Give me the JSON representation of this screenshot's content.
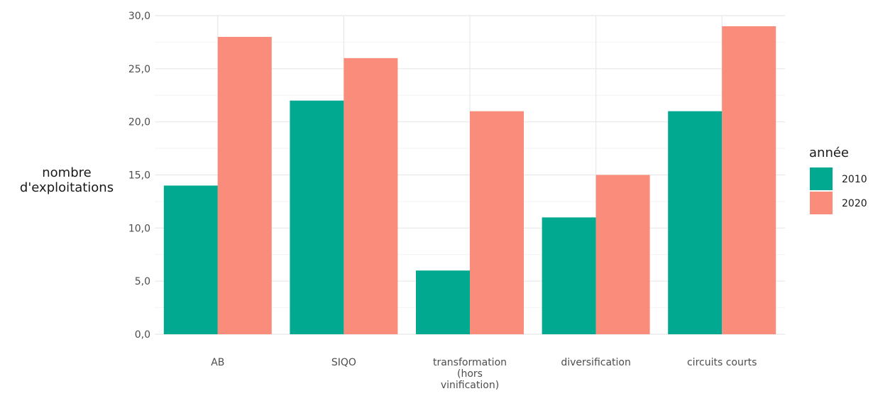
{
  "chart_data": {
    "type": "bar",
    "categories": [
      "AB",
      "SIQO",
      "transformation (hors vinification)",
      "diversification",
      "circuits courts"
    ],
    "category_label_lines": [
      [
        "AB"
      ],
      [
        "SIQO"
      ],
      [
        "transformation",
        "(hors",
        "vinification)"
      ],
      [
        "diversification"
      ],
      [
        "circuits courts"
      ]
    ],
    "series": [
      {
        "name": "2010",
        "color": "#00a98f",
        "values": [
          14,
          22,
          6,
          11,
          21
        ]
      },
      {
        "name": "2020",
        "color": "#fa8c7c",
        "values": [
          28,
          26,
          21,
          15,
          29
        ]
      }
    ],
    "ylabel_lines": [
      "nombre",
      "d'exploitations"
    ],
    "xlabel": "",
    "ylim": [
      0,
      30
    ],
    "yticks": [
      "0,0",
      "5,0",
      "10,0",
      "15,0",
      "20,0",
      "25,0",
      "30,0"
    ],
    "ytick_values": [
      0,
      5,
      10,
      15,
      20,
      25,
      30
    ],
    "grid": true,
    "legend": {
      "title": "année",
      "placement": "right"
    }
  }
}
